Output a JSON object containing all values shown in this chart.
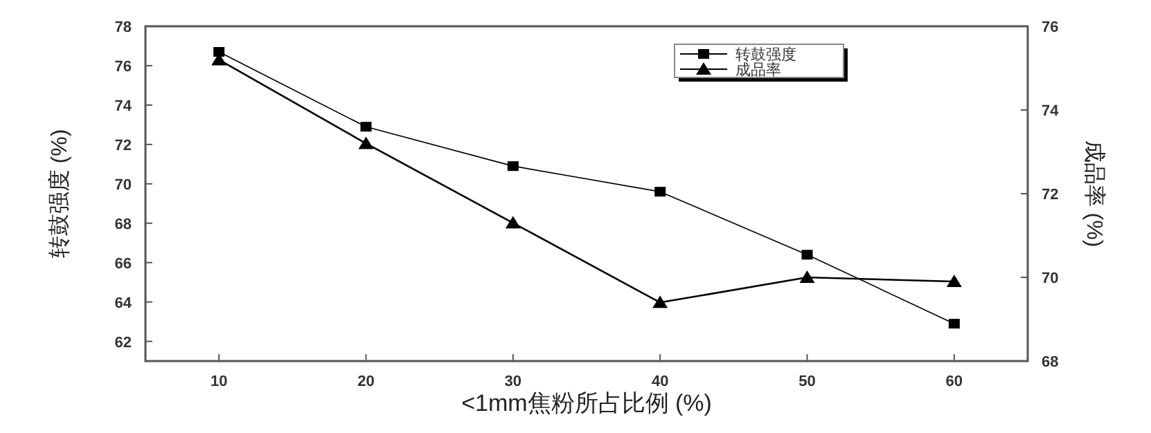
{
  "chart_data": {
    "type": "line",
    "xlabel": "<1mm焦粉所占比例 (%)",
    "ylabel": "转鼓强度 (%)",
    "y2label": "成品率 (%)",
    "x": [
      10,
      20,
      30,
      40,
      50,
      60
    ],
    "series": [
      {
        "name": "转鼓强度",
        "color": "#000000",
        "marker": "square",
        "values": [
          76.7,
          72.9,
          70.9,
          69.6,
          66.4,
          62.9
        ]
      },
      {
        "name": "成品率",
        "color": "#000000",
        "marker": "triangle",
        "axis": "y2",
        "values": [
          75.2,
          73.2,
          71.3,
          69.4,
          70.0,
          69.9
        ]
      }
    ],
    "xlim": [
      5,
      65
    ],
    "xticks": [
      10,
      20,
      30,
      40,
      50,
      60
    ],
    "ylim": [
      61,
      78
    ],
    "yticks": [
      62,
      64,
      66,
      68,
      70,
      72,
      74,
      76,
      78
    ],
    "y2lim": [
      68,
      76
    ],
    "y2ticks": [
      68,
      70,
      72,
      74,
      76
    ],
    "grid": false,
    "legend": "top right",
    "line_style": "solid"
  }
}
